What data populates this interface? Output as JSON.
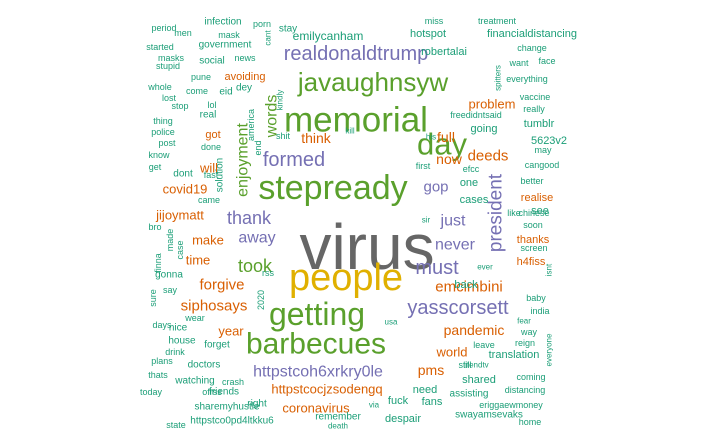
{
  "palette": {
    "gray": "#666666",
    "gold": "#e0b000",
    "green": "#5aa02c",
    "purple": "#7570b3",
    "orange": "#d95f02",
    "teal": "#1b9e77"
  },
  "words": [
    {
      "text": "virus",
      "color": "gray"
    },
    {
      "text": "people",
      "color": "gold"
    },
    {
      "text": "getting",
      "color": "green"
    },
    {
      "text": "barbecues",
      "color": "green"
    },
    {
      "text": "memorial",
      "color": "green"
    },
    {
      "text": "stepready",
      "color": "green"
    },
    {
      "text": "day",
      "color": "green"
    },
    {
      "text": "javaughnsyw",
      "color": "green"
    },
    {
      "text": "realdonaldtrump",
      "color": "purple"
    },
    {
      "text": "formed",
      "color": "purple"
    },
    {
      "text": "yasscorsett",
      "color": "purple"
    },
    {
      "text": "httpstcoh6xrkry0le",
      "color": "purple"
    },
    {
      "text": "thank",
      "color": "purple"
    },
    {
      "text": "away",
      "color": "purple"
    },
    {
      "text": "just",
      "color": "purple"
    },
    {
      "text": "must",
      "color": "purple"
    },
    {
      "text": "never",
      "color": "purple"
    },
    {
      "text": "president",
      "color": "purple"
    },
    {
      "text": "gop",
      "color": "purple"
    },
    {
      "text": "enjoyment",
      "color": "green"
    },
    {
      "text": "took",
      "color": "green"
    },
    {
      "text": "words",
      "color": "green"
    },
    {
      "text": "think",
      "color": "orange"
    },
    {
      "text": "siphosays",
      "color": "orange"
    },
    {
      "text": "forgive",
      "color": "orange"
    },
    {
      "text": "emcimbini",
      "color": "orange"
    },
    {
      "text": "pandemic",
      "color": "orange"
    },
    {
      "text": "covid19",
      "color": "orange"
    },
    {
      "text": "jijoymatt",
      "color": "orange"
    },
    {
      "text": "make",
      "color": "orange"
    },
    {
      "text": "time",
      "color": "orange"
    },
    {
      "text": "deeds",
      "color": "orange"
    },
    {
      "text": "now",
      "color": "orange"
    },
    {
      "text": "full",
      "color": "orange"
    },
    {
      "text": "problem",
      "color": "orange"
    },
    {
      "text": "will",
      "color": "orange"
    },
    {
      "text": "pms",
      "color": "orange"
    },
    {
      "text": "httpstcocjzsodengq",
      "color": "orange"
    },
    {
      "text": "coronavirus",
      "color": "orange"
    },
    {
      "text": "year",
      "color": "orange"
    },
    {
      "text": "world",
      "color": "orange"
    },
    {
      "text": "avoiding",
      "color": "orange"
    },
    {
      "text": "got",
      "color": "orange"
    },
    {
      "text": "thanks",
      "color": "orange"
    },
    {
      "text": "realise",
      "color": "orange"
    },
    {
      "text": "h4fiss",
      "color": "orange"
    },
    {
      "text": "emilycanham",
      "color": "teal"
    },
    {
      "text": "hotspot",
      "color": "teal"
    },
    {
      "text": "financialdistancing",
      "color": "teal"
    },
    {
      "text": "robertalai",
      "color": "teal"
    },
    {
      "text": "tumblr",
      "color": "teal"
    },
    {
      "text": "5623v2",
      "color": "teal"
    },
    {
      "text": "going",
      "color": "teal"
    },
    {
      "text": "one",
      "color": "teal"
    },
    {
      "text": "cases",
      "color": "teal"
    },
    {
      "text": "back",
      "color": "teal"
    },
    {
      "text": "shared",
      "color": "teal"
    },
    {
      "text": "translation",
      "color": "teal"
    },
    {
      "text": "fuck",
      "color": "teal"
    },
    {
      "text": "fans",
      "color": "teal"
    },
    {
      "text": "need",
      "color": "teal"
    },
    {
      "text": "despair",
      "color": "teal"
    },
    {
      "text": "remember",
      "color": "teal"
    },
    {
      "text": "right",
      "color": "teal"
    },
    {
      "text": "sharemyhustle",
      "color": "teal"
    },
    {
      "text": "friends",
      "color": "teal"
    },
    {
      "text": "httpstco0pd4ltkku6",
      "color": "teal"
    },
    {
      "text": "swayamsevaks",
      "color": "teal"
    },
    {
      "text": "assisting",
      "color": "teal"
    },
    {
      "text": "watching",
      "color": "teal"
    },
    {
      "text": "doctors",
      "color": "teal"
    },
    {
      "text": "forget",
      "color": "teal"
    },
    {
      "text": "house",
      "color": "teal"
    },
    {
      "text": "nice",
      "color": "teal"
    },
    {
      "text": "gonna",
      "color": "teal"
    },
    {
      "text": "dont",
      "color": "teal"
    },
    {
      "text": "government",
      "color": "teal"
    },
    {
      "text": "social",
      "color": "teal"
    },
    {
      "text": "stay",
      "color": "teal"
    },
    {
      "text": "infection",
      "color": "teal"
    },
    {
      "text": "real",
      "color": "teal"
    },
    {
      "text": "solution",
      "color": "teal"
    },
    {
      "text": "eid",
      "color": "teal"
    },
    {
      "text": "dey",
      "color": "teal"
    },
    {
      "text": "news",
      "color": "teal"
    },
    {
      "text": "come",
      "color": "teal"
    },
    {
      "text": "pune",
      "color": "teal"
    },
    {
      "text": "lol",
      "color": "teal"
    },
    {
      "text": "mask",
      "color": "teal"
    },
    {
      "text": "men",
      "color": "teal"
    },
    {
      "text": "period",
      "color": "teal"
    },
    {
      "text": "started",
      "color": "teal"
    },
    {
      "text": "stupid",
      "color": "teal"
    },
    {
      "text": "masks",
      "color": "teal"
    },
    {
      "text": "whole",
      "color": "teal"
    },
    {
      "text": "lost",
      "color": "teal"
    },
    {
      "text": "stop",
      "color": "teal"
    },
    {
      "text": "thing",
      "color": "teal"
    },
    {
      "text": "police",
      "color": "teal"
    },
    {
      "text": "post",
      "color": "teal"
    },
    {
      "text": "know",
      "color": "teal"
    },
    {
      "text": "get",
      "color": "teal"
    },
    {
      "text": "done",
      "color": "teal"
    },
    {
      "text": "fast",
      "color": "teal"
    },
    {
      "text": "came",
      "color": "teal"
    },
    {
      "text": "bro",
      "color": "teal"
    },
    {
      "text": "made",
      "color": "teal"
    },
    {
      "text": "finna",
      "color": "teal"
    },
    {
      "text": "case",
      "color": "teal"
    },
    {
      "text": "rss",
      "color": "teal"
    },
    {
      "text": "say",
      "color": "teal"
    },
    {
      "text": "2020",
      "color": "teal"
    },
    {
      "text": "sure",
      "color": "teal"
    },
    {
      "text": "wear",
      "color": "teal"
    },
    {
      "text": "days",
      "color": "teal"
    },
    {
      "text": "drink",
      "color": "teal"
    },
    {
      "text": "plans",
      "color": "teal"
    },
    {
      "text": "thats",
      "color": "teal"
    },
    {
      "text": "crash",
      "color": "teal"
    },
    {
      "text": "today",
      "color": "teal"
    },
    {
      "text": "ofrss",
      "color": "teal"
    },
    {
      "text": "state",
      "color": "teal"
    },
    {
      "text": "death",
      "color": "teal"
    },
    {
      "text": "via",
      "color": "teal"
    },
    {
      "text": "usa",
      "color": "teal"
    },
    {
      "text": "kill",
      "color": "teal"
    },
    {
      "text": "shit",
      "color": "teal"
    },
    {
      "text": "end",
      "color": "teal"
    },
    {
      "text": "america",
      "color": "teal"
    },
    {
      "text": "kindly",
      "color": "teal"
    },
    {
      "text": "porn",
      "color": "teal"
    },
    {
      "text": "cant",
      "color": "teal"
    },
    {
      "text": "miss",
      "color": "teal"
    },
    {
      "text": "treatment",
      "color": "teal"
    },
    {
      "text": "change",
      "color": "teal"
    },
    {
      "text": "face",
      "color": "teal"
    },
    {
      "text": "spitters",
      "color": "teal"
    },
    {
      "text": "want",
      "color": "teal"
    },
    {
      "text": "everything",
      "color": "teal"
    },
    {
      "text": "vaccine",
      "color": "teal"
    },
    {
      "text": "really",
      "color": "teal"
    },
    {
      "text": "freedidntsaid",
      "color": "teal"
    },
    {
      "text": "his",
      "color": "teal"
    },
    {
      "text": "may",
      "color": "teal"
    },
    {
      "text": "cangood",
      "color": "teal"
    },
    {
      "text": "first",
      "color": "teal"
    },
    {
      "text": "efcc",
      "color": "teal"
    },
    {
      "text": "better",
      "color": "teal"
    },
    {
      "text": "chinese",
      "color": "teal"
    },
    {
      "text": "soon",
      "color": "teal"
    },
    {
      "text": "like",
      "color": "teal"
    },
    {
      "text": "sir",
      "color": "teal"
    },
    {
      "text": "screen",
      "color": "teal"
    },
    {
      "text": "ever",
      "color": "teal"
    },
    {
      "text": "isnt",
      "color": "teal"
    },
    {
      "text": "baby",
      "color": "teal"
    },
    {
      "text": "india",
      "color": "teal"
    },
    {
      "text": "fear",
      "color": "teal"
    },
    {
      "text": "way",
      "color": "teal"
    },
    {
      "text": "reign",
      "color": "teal"
    },
    {
      "text": "everyone",
      "color": "teal"
    },
    {
      "text": "leave",
      "color": "teal"
    },
    {
      "text": "still",
      "color": "teal"
    },
    {
      "text": "lifendtv",
      "color": "teal"
    },
    {
      "text": "coming",
      "color": "teal"
    },
    {
      "text": "distancing",
      "color": "teal"
    },
    {
      "text": "eriggaewmoney",
      "color": "teal"
    },
    {
      "text": "home",
      "color": "teal"
    },
    {
      "text": "see",
      "color": "teal"
    }
  ]
}
